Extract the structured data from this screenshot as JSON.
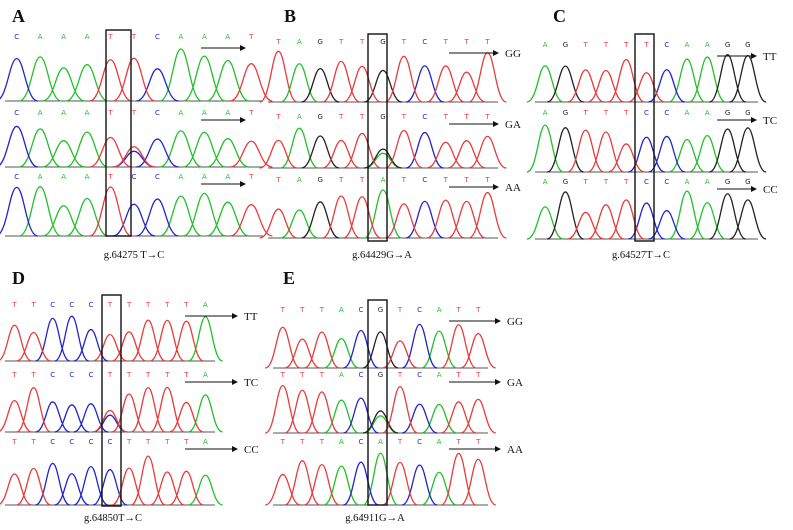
{
  "colors": {
    "A": "#22c02a",
    "C": "#2323cc",
    "G": "#222222",
    "T": "#e83b3b"
  },
  "panels": [
    {
      "id": "A",
      "letter": "A",
      "caption": "g.64275 T→C",
      "rows": [
        {
          "seq": "CAAATTCAAAT",
          "genotype": ""
        },
        {
          "seq": "CAAATTCAAAT",
          "genotype": ""
        },
        {
          "seq": "CAAATCCAAAT",
          "genotype": ""
        }
      ],
      "highlight": 5
    },
    {
      "id": "B",
      "letter": "B",
      "caption": "g.64429G→A",
      "rows": [
        {
          "seq": "TAGTTGTCTTT",
          "genotype": "GG"
        },
        {
          "seq": "TAGTTGTCTTT",
          "genotype": "GA"
        },
        {
          "seq": "TAGTTATCTTT",
          "genotype": "AA"
        }
      ],
      "highlight": 5
    },
    {
      "id": "C",
      "letter": "C",
      "caption": "g.64527T→C",
      "rows": [
        {
          "seq": "AGTTTTCAAGG",
          "genotype": "TT"
        },
        {
          "seq": "AGTTTCCAAGG",
          "genotype": "TC"
        },
        {
          "seq": "AGTTTCCAAGG",
          "genotype": "CC"
        }
      ],
      "highlight": 5
    },
    {
      "id": "D",
      "letter": "D",
      "caption": "g.64850T→C",
      "rows": [
        {
          "seq": "TTCCCTTTTTA",
          "genotype": "TT"
        },
        {
          "seq": "TTCCCTTTTTA",
          "genotype": "TC"
        },
        {
          "seq": "TTCCCCTTTTA",
          "genotype": "CC"
        }
      ],
      "highlight": 5
    },
    {
      "id": "E",
      "letter": "E",
      "caption": "g.64911G→A",
      "rows": [
        {
          "seq": "TTTACGTCATT",
          "genotype": "GG"
        },
        {
          "seq": "TTTACGTCATT",
          "genotype": "GA"
        },
        {
          "seq": "TTTACATCATT",
          "genotype": "AA"
        }
      ],
      "highlight": 5
    }
  ]
}
